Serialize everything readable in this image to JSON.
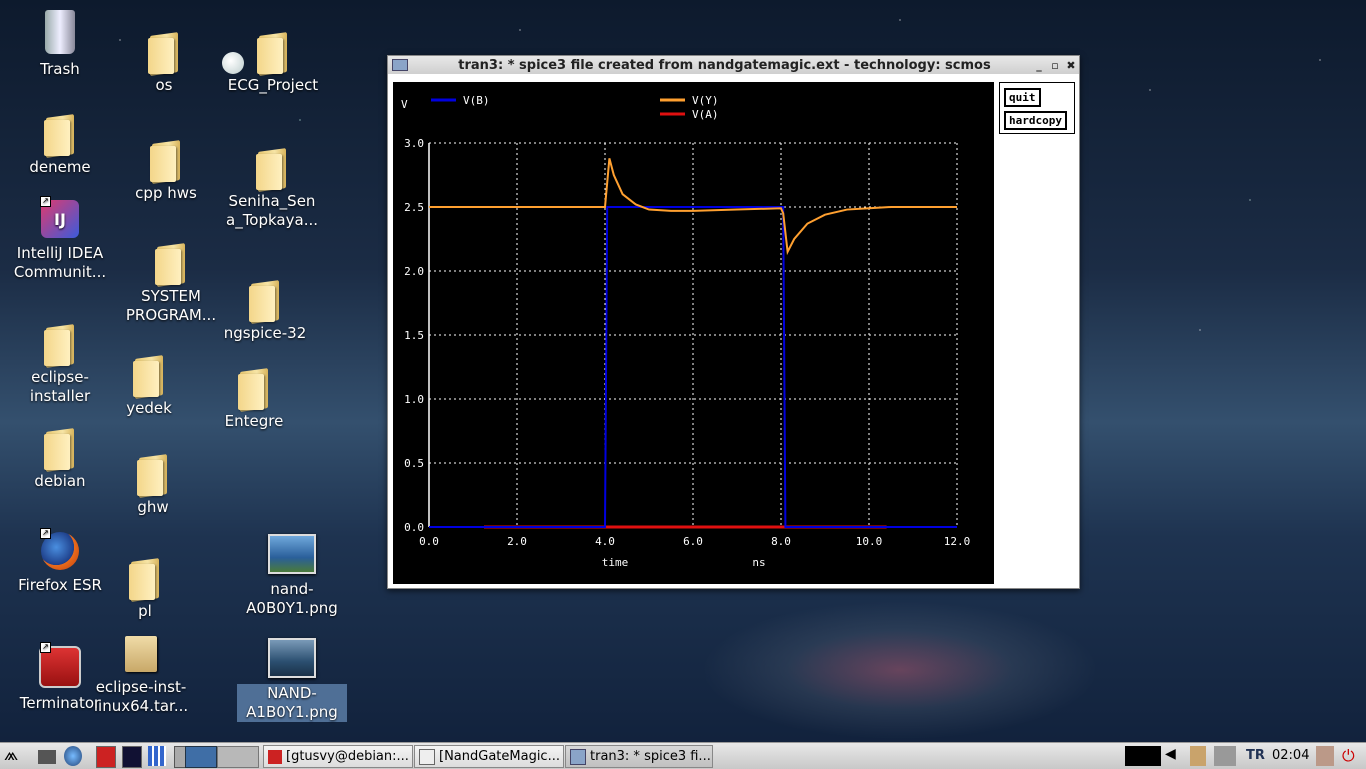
{
  "desktop": {
    "icons": {
      "trash": "Trash",
      "os": "os",
      "ecg": "ECG_Project",
      "deneme": "deneme",
      "cpp": "cpp hws",
      "seniha1": "Seniha_Sen",
      "seniha2": "a_Topkaya...",
      "intellij1": "IntelliJ IDEA",
      "intellij2": "Communit...",
      "system1": "SYSTEM",
      "system2": "PROGRAM...",
      "ngspice": "ngspice-32",
      "eclipse1": "eclipse-",
      "eclipse2": "installer",
      "yedek": "yedek",
      "entegre": "Entegre",
      "debian": "debian",
      "ghw": "ghw",
      "firefox": "Firefox ESR",
      "nand0a": "nand-",
      "nand0b": "A0B0Y1.png",
      "pl": "pl",
      "terminator": "Terminator",
      "ecltar1": "eclipse-inst-",
      "ecltar2": "linux64.tar...",
      "nand1a": "NAND-",
      "nand1b": "A1B0Y1.png"
    }
  },
  "window": {
    "title": "tran3: * spice3 file created from nandgatemagic.ext - technology: scmos",
    "controls": {
      "minimize": "_",
      "maximize": "▫",
      "close": "✖"
    },
    "buttons": {
      "quit": "quit",
      "hardcopy": "hardcopy"
    }
  },
  "chart_data": {
    "type": "line",
    "ylabel": "V",
    "xlabel": "time",
    "xunit": "ns",
    "xlim": [
      0,
      12
    ],
    "ylim": [
      0,
      3
    ],
    "xticks": [
      "0.0",
      "2.0",
      "4.0",
      "6.0",
      "8.0",
      "10.0",
      "12.0"
    ],
    "yticks": [
      "0.0",
      "0.5",
      "1.0",
      "1.5",
      "2.0",
      "2.5",
      "3.0"
    ],
    "grid": true,
    "series": [
      {
        "name": "V(B)",
        "color": "#0000e0",
        "x": [
          0,
          4.0,
          4.05,
          8.05,
          8.1,
          12
        ],
        "y": [
          0,
          0,
          2.5,
          2.5,
          0,
          0
        ]
      },
      {
        "name": "V(Y)",
        "color": "#ffa030",
        "x": [
          0,
          4.0,
          4.1,
          4.2,
          4.4,
          4.7,
          5.0,
          5.5,
          6.0,
          7.0,
          8.0,
          8.05,
          8.15,
          8.3,
          8.6,
          9.0,
          9.5,
          10.0,
          10.5,
          12
        ],
        "y": [
          2.5,
          2.5,
          2.88,
          2.75,
          2.6,
          2.52,
          2.48,
          2.47,
          2.47,
          2.48,
          2.49,
          2.45,
          2.15,
          2.25,
          2.37,
          2.44,
          2.48,
          2.49,
          2.5,
          2.5
        ]
      },
      {
        "name": "V(A)",
        "color": "#e01010",
        "x": [
          1.25,
          10.4
        ],
        "y": [
          0,
          0
        ]
      }
    ]
  },
  "taskbar": {
    "tasks": [
      {
        "label": "[gtusvy@debian:..."
      },
      {
        "label": "[NandGateMagic..."
      },
      {
        "label": "tran3: * spice3 fi..."
      }
    ],
    "keyboard": "TR",
    "clock": "02:04"
  }
}
